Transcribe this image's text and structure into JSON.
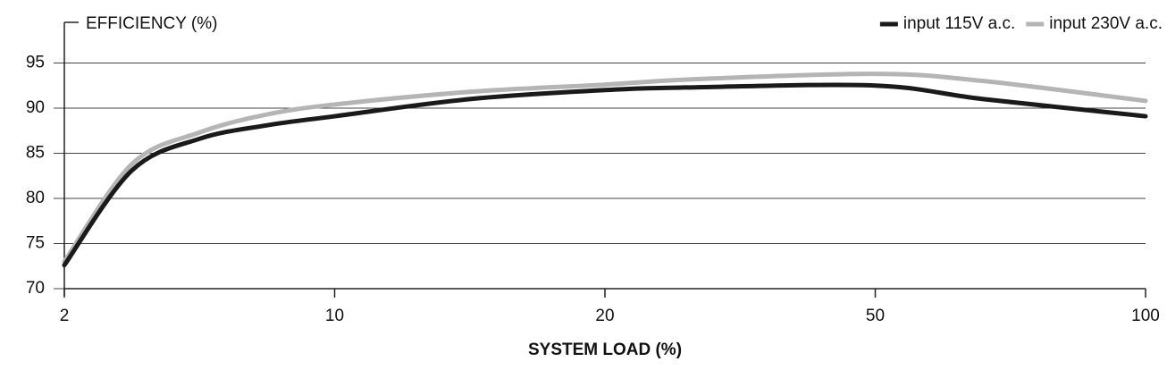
{
  "chart_data": {
    "type": "line",
    "y_label": "EFFICIENCY (%)",
    "x_label": "SYSTEM LOAD (%)",
    "x": [
      2,
      4,
      6,
      8,
      10,
      15,
      20,
      30,
      50,
      70,
      100
    ],
    "series": [
      {
        "name": "input 115V a.c.",
        "color": "#1a1a1a",
        "values": [
          72.6,
          83.1,
          86.6,
          88.1,
          89.1,
          91.0,
          92.0,
          92.3,
          92.5,
          91.0,
          89.1
        ]
      },
      {
        "name": "input 230V a.c.",
        "color": "#b5b5b5",
        "values": [
          73.0,
          83.8,
          87.3,
          89.3,
          90.4,
          91.8,
          92.6,
          93.2,
          93.8,
          93.0,
          90.8
        ]
      }
    ],
    "xticks": [
      2,
      10,
      20,
      50,
      100
    ],
    "ylim": [
      70,
      99.5
    ],
    "yticks": [
      70,
      75,
      80,
      85,
      90,
      95
    ],
    "grid": true,
    "legend": "top-right"
  }
}
